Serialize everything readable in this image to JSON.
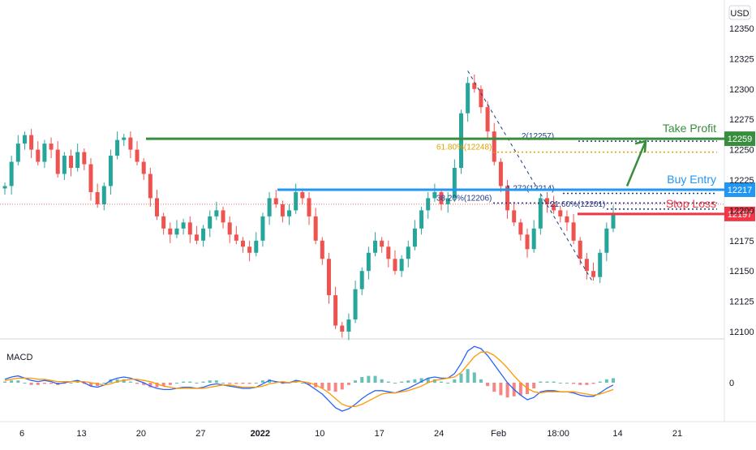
{
  "chart_data": {
    "type": "candlestick",
    "instrument_currency": "USD",
    "x_tick_labels": [
      "6",
      "13",
      "20",
      "27",
      "2022",
      "10",
      "17",
      "24",
      "Feb",
      "18:00",
      "14",
      "21"
    ],
    "y_ticks": [
      12350,
      12325,
      12300,
      12275,
      12250,
      12225,
      12200,
      12175,
      12150,
      12125,
      12100
    ],
    "y_range": [
      12098,
      12360
    ],
    "levels": [
      {
        "name": "Take Profit",
        "value": 12259,
        "tag": "12259",
        "color": "#388e3c"
      },
      {
        "name": "Buy Entry",
        "value": 12217,
        "tag": "12217",
        "color": "#2196f3"
      },
      {
        "name": "Stop Loss",
        "value": 12197,
        "tag": "12197",
        "color": "#f23645"
      }
    ],
    "fib_labels": [
      {
        "text": "61.80%(12248)",
        "value": 12248,
        "color": "#e0a000"
      },
      {
        "text": "38.20%(12206)",
        "value": 12206,
        "color": "#1e3a8a"
      },
      {
        "text": "2(12257)",
        "value": 12257,
        "color": "#1e3a8a"
      },
      {
        "text": "1.272(12214)",
        "value": 12214,
        "color": "#1e3a8a"
      },
      {
        "text": "21.60%(12201)",
        "value": 12201,
        "color": "#1e3a8a"
      }
    ],
    "price_series": [
      12220,
      12240,
      12255,
      12262,
      12250,
      12240,
      12255,
      12250,
      12230,
      12245,
      12235,
      12248,
      12238,
      12215,
      12205,
      12220,
      12245,
      12258,
      12260,
      12250,
      12240,
      12230,
      12210,
      12195,
      12185,
      12180,
      12185,
      12190,
      12180,
      12175,
      12185,
      12195,
      12200,
      12190,
      12180,
      12175,
      12170,
      12165,
      12175,
      12195,
      12210,
      12205,
      12195,
      12200,
      12215,
      12210,
      12195,
      12175,
      12160,
      12130,
      12105,
      12100,
      12110,
      12135,
      12150,
      12165,
      12175,
      12170,
      12160,
      12150,
      12160,
      12170,
      12185,
      12200,
      12210,
      12215,
      12205,
      12210,
      12235,
      12280,
      12305,
      12300,
      12285,
      12265,
      12240,
      12220,
      12200,
      12190,
      12180,
      12168,
      12185,
      12210,
      12205,
      12200,
      12195,
      12190,
      12175,
      12160,
      12150,
      12145,
      12165,
      12185,
      12197
    ],
    "macd": {
      "label": "MACD",
      "zero_label": "0",
      "macd_line": [
        0.3,
        0.5,
        0.6,
        0.4,
        0.2,
        0.1,
        0.2,
        0.1,
        -0.1,
        0.0,
        0.1,
        0.2,
        0.0,
        -0.3,
        -0.4,
        -0.2,
        0.2,
        0.4,
        0.5,
        0.4,
        0.2,
        0.0,
        -0.3,
        -0.5,
        -0.6,
        -0.6,
        -0.5,
        -0.4,
        -0.4,
        -0.5,
        -0.4,
        -0.2,
        -0.1,
        -0.2,
        -0.3,
        -0.4,
        -0.5,
        -0.5,
        -0.4,
        -0.1,
        0.2,
        0.1,
        0.0,
        0.0,
        0.2,
        0.1,
        -0.2,
        -0.6,
        -1.0,
        -1.6,
        -2.2,
        -2.5,
        -2.3,
        -1.9,
        -1.4,
        -1.0,
        -0.7,
        -0.7,
        -0.8,
        -0.9,
        -0.7,
        -0.5,
        -0.2,
        0.1,
        0.4,
        0.5,
        0.4,
        0.4,
        0.8,
        1.7,
        2.8,
        3.2,
        3.0,
        2.4,
        1.6,
        0.8,
        0.0,
        -0.6,
        -1.1,
        -1.5,
        -1.3,
        -0.8,
        -0.7,
        -0.7,
        -0.8,
        -0.8,
        -0.9,
        -1.1,
        -1.2,
        -1.2,
        -0.9,
        -0.5,
        -0.2
      ],
      "signal_line": [
        0.2,
        0.3,
        0.4,
        0.4,
        0.4,
        0.3,
        0.3,
        0.2,
        0.1,
        0.1,
        0.1,
        0.1,
        0.1,
        0.0,
        -0.1,
        -0.2,
        -0.1,
        0.1,
        0.2,
        0.3,
        0.3,
        0.2,
        0.1,
        -0.1,
        -0.3,
        -0.4,
        -0.5,
        -0.5,
        -0.5,
        -0.5,
        -0.5,
        -0.4,
        -0.3,
        -0.2,
        -0.2,
        -0.3,
        -0.4,
        -0.4,
        -0.4,
        -0.3,
        -0.1,
        0.0,
        0.1,
        0.0,
        0.1,
        0.1,
        0.0,
        -0.2,
        -0.5,
        -0.9,
        -1.4,
        -1.9,
        -2.1,
        -2.1,
        -1.9,
        -1.6,
        -1.3,
        -1.0,
        -0.9,
        -0.9,
        -0.8,
        -0.7,
        -0.5,
        -0.3,
        0.0,
        0.2,
        0.3,
        0.4,
        0.5,
        0.9,
        1.6,
        2.3,
        2.7,
        2.7,
        2.4,
        1.9,
        1.3,
        0.6,
        0.0,
        -0.5,
        -0.8,
        -0.9,
        -0.8,
        -0.8,
        -0.8,
        -0.8,
        -0.8,
        -0.9,
        -1.0,
        -1.1,
        -1.0,
        -0.8,
        -0.6
      ]
    }
  },
  "colors": {
    "up": "#26a69a",
    "down": "#ef5350",
    "macd_line": "#2962ff",
    "signal_line": "#ff9800",
    "hist_up": "#26a69a",
    "hist_down": "#ef5350",
    "arrow": "#388e3c"
  }
}
